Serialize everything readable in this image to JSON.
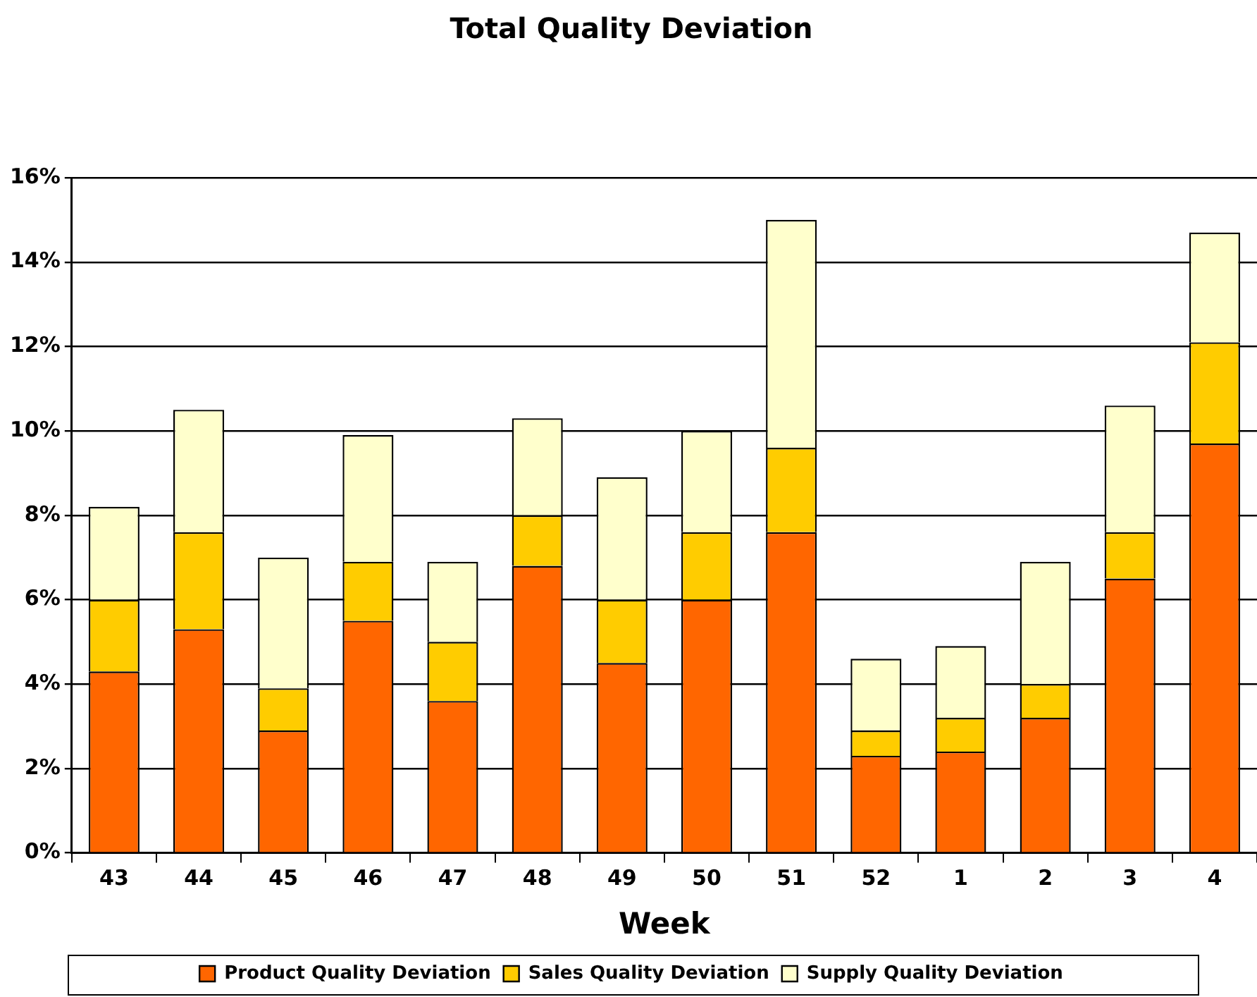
{
  "chart_data": {
    "type": "bar",
    "title": "Total Quality Deviation",
    "xlabel": "Week",
    "stacked": true,
    "grid": "y",
    "legend": "bottom",
    "categories": [
      "43",
      "44",
      "45",
      "46",
      "47",
      "48",
      "49",
      "50",
      "51",
      "52",
      "1",
      "2",
      "3",
      "4"
    ],
    "series": [
      {
        "name": "Product Quality Deviation",
        "color": "#ff6600",
        "values": [
          4.3,
          5.3,
          2.9,
          5.5,
          3.6,
          6.8,
          4.5,
          6.0,
          7.6,
          2.3,
          2.4,
          3.2,
          6.5,
          9.7
        ]
      },
      {
        "name": "Sales Quality Deviation",
        "color": "#ffcc00",
        "values": [
          1.7,
          2.3,
          1.0,
          1.4,
          1.4,
          1.2,
          1.5,
          1.6,
          2.0,
          0.6,
          0.8,
          0.8,
          1.1,
          2.4
        ]
      },
      {
        "name": "Supply Quality Deviation",
        "color": "#ffffcc",
        "values": [
          2.2,
          2.9,
          3.1,
          3.0,
          1.9,
          2.3,
          2.9,
          2.4,
          5.4,
          1.7,
          1.7,
          2.9,
          3.0,
          2.6
        ]
      }
    ],
    "ylim": [
      0,
      16
    ],
    "yticks": [
      {
        "value": 0,
        "label": "0%"
      },
      {
        "value": 2,
        "label": "2%"
      },
      {
        "value": 4,
        "label": "4%"
      },
      {
        "value": 6,
        "label": "6%"
      },
      {
        "value": 8,
        "label": "8%"
      },
      {
        "value": 10,
        "label": "10%"
      },
      {
        "value": 12,
        "label": "12%"
      },
      {
        "value": 14,
        "label": "14%"
      },
      {
        "value": 16,
        "label": "16%"
      }
    ]
  }
}
